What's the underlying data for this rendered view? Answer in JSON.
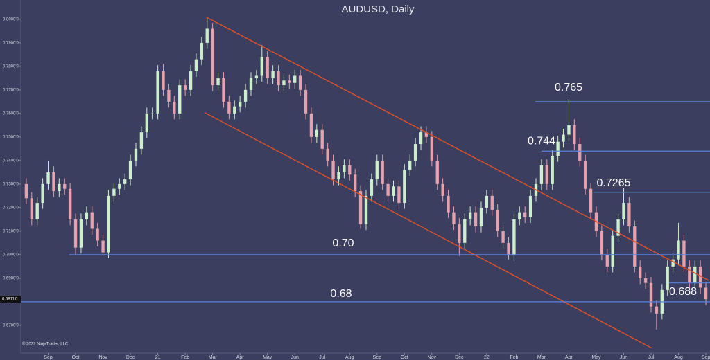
{
  "chart_data": {
    "type": "candlestick",
    "title": "AUDUSD, Daily",
    "copyright": "© 2022 NinjaTrader, LLC",
    "background": "#3b3e5e",
    "up_color": "#cdeecd",
    "down_color": "#e3a2ad",
    "level_color": "#5b82dc",
    "channel_color": "#d9502a",
    "xlim": [
      -1.0,
      24.1
    ],
    "ylim": [
      0.6582,
      0.8082
    ],
    "xticks": [
      {
        "value": 0,
        "label": "Sep"
      },
      {
        "value": 1,
        "label": "Oct"
      },
      {
        "value": 2,
        "label": "Nov"
      },
      {
        "value": 3,
        "label": "Dec"
      },
      {
        "value": 4,
        "label": "21"
      },
      {
        "value": 5,
        "label": "Feb"
      },
      {
        "value": 6,
        "label": "Mar"
      },
      {
        "value": 7,
        "label": "Apr"
      },
      {
        "value": 8,
        "label": "May"
      },
      {
        "value": 9,
        "label": "Jun"
      },
      {
        "value": 10,
        "label": "Jul"
      },
      {
        "value": 11,
        "label": "Aug"
      },
      {
        "value": 12,
        "label": "Sep"
      },
      {
        "value": 13,
        "label": "Oct"
      },
      {
        "value": 14,
        "label": "Nov"
      },
      {
        "value": 15,
        "label": "Dec"
      },
      {
        "value": 16,
        "label": "22"
      },
      {
        "value": 17,
        "label": "Feb"
      },
      {
        "value": 18,
        "label": "Mar"
      },
      {
        "value": 19,
        "label": "Apr"
      },
      {
        "value": 20,
        "label": "May"
      },
      {
        "value": 21,
        "label": "Jun"
      },
      {
        "value": 22,
        "label": "Jul"
      },
      {
        "value": 23,
        "label": "Aug"
      },
      {
        "value": 24,
        "label": "Sep"
      }
    ],
    "yticks": [
      {
        "value": 0.67,
        "label": "0.6700'0"
      },
      {
        "value": 0.68,
        "label": "0.6800'0"
      },
      {
        "value": 0.69,
        "label": "0.6900'0"
      },
      {
        "value": 0.7,
        "label": "0.7000'0"
      },
      {
        "value": 0.71,
        "label": "0.7100'0"
      },
      {
        "value": 0.72,
        "label": "0.7200'0"
      },
      {
        "value": 0.73,
        "label": "0.7300'0"
      },
      {
        "value": 0.74,
        "label": "0.7400'0"
      },
      {
        "value": 0.75,
        "label": "0.7500'0"
      },
      {
        "value": 0.76,
        "label": "0.7600'0"
      },
      {
        "value": 0.77,
        "label": "0.7700'0"
      },
      {
        "value": 0.78,
        "label": "0.7800'0"
      },
      {
        "value": 0.79,
        "label": "0.7900'0"
      },
      {
        "value": 0.8,
        "label": "0.8000'0"
      }
    ],
    "last_price": {
      "value": 0.6811,
      "label": "0.6811'0"
    },
    "levels": [
      {
        "value": 0.765,
        "label": "0.765",
        "x_start": 17.77
      },
      {
        "value": 0.744,
        "label": "0.744",
        "x_start": 18.0
      },
      {
        "value": 0.7265,
        "label": "0.7265",
        "x_start": 19.9
      },
      {
        "value": 0.7,
        "label": "0.70",
        "x_start": 0.77
      },
      {
        "value": 0.68,
        "label": "0.68",
        "x_start": -1.0
      },
      {
        "value": 0.688,
        "label": "0.688",
        "x_start": 22.66
      }
    ],
    "channels": [
      {
        "x": [
          5.77,
          24.1
        ],
        "y": [
          0.8009,
          0.6891
        ]
      },
      {
        "x": [
          5.72,
          22.03
        ],
        "y": [
          0.7603,
          0.6603
        ]
      }
    ],
    "x": [
      -0.8,
      -0.6,
      -0.4,
      -0.2,
      0,
      0.2,
      0.4,
      0.6,
      0.8,
      1,
      1.2,
      1.4,
      1.6,
      1.8,
      2,
      2.2,
      2.4,
      2.6,
      2.8,
      3,
      3.2,
      3.4,
      3.6,
      3.8,
      4,
      4.2,
      4.4,
      4.6,
      4.8,
      5,
      5.2,
      5.4,
      5.6,
      5.8,
      6,
      6.2,
      6.4,
      6.6,
      6.8,
      7,
      7.2,
      7.4,
      7.6,
      7.8,
      8,
      8.2,
      8.4,
      8.6,
      8.8,
      9,
      9.2,
      9.4,
      9.6,
      9.8,
      10,
      10.2,
      10.4,
      10.6,
      10.8,
      11,
      11.2,
      11.4,
      11.6,
      11.8,
      12,
      12.2,
      12.4,
      12.6,
      12.8,
      13,
      13.2,
      13.4,
      13.6,
      13.8,
      14,
      14.2,
      14.4,
      14.6,
      14.8,
      15,
      15.2,
      15.4,
      15.6,
      15.8,
      16,
      16.2,
      16.4,
      16.6,
      16.8,
      17,
      17.2,
      17.4,
      17.6,
      17.8,
      18,
      18.2,
      18.4,
      18.6,
      18.8,
      19,
      19.2,
      19.4,
      19.6,
      19.8,
      20,
      20.2,
      20.4,
      20.6,
      20.8,
      21,
      21.2,
      21.4,
      21.6,
      21.8,
      22,
      22.2,
      22.4,
      22.6,
      22.8,
      23,
      23.2,
      23.4,
      23.6,
      23.8,
      24
    ],
    "open": [
      0.73,
      0.724,
      0.715,
      0.722,
      0.73,
      0.735,
      0.727,
      0.73,
      0.728,
      0.715,
      0.703,
      0.715,
      0.718,
      0.711,
      0.706,
      0.701,
      0.725,
      0.728,
      0.73,
      0.732,
      0.74,
      0.745,
      0.752,
      0.76,
      0.76,
      0.778,
      0.77,
      0.765,
      0.76,
      0.772,
      0.77,
      0.778,
      0.783,
      0.79,
      0.796,
      0.772,
      0.775,
      0.765,
      0.76,
      0.763,
      0.765,
      0.77,
      0.775,
      0.776,
      0.784,
      0.775,
      0.778,
      0.772,
      0.774,
      0.773,
      0.776,
      0.77,
      0.76,
      0.75,
      0.753,
      0.745,
      0.74,
      0.732,
      0.735,
      0.738,
      0.734,
      0.727,
      0.713,
      0.725,
      0.732,
      0.74,
      0.73,
      0.725,
      0.729,
      0.722,
      0.736,
      0.74,
      0.747,
      0.752,
      0.75,
      0.74,
      0.73,
      0.725,
      0.718,
      0.713,
      0.705,
      0.715,
      0.718,
      0.712,
      0.72,
      0.725,
      0.719,
      0.71,
      0.705,
      0.7,
      0.715,
      0.718,
      0.716,
      0.725,
      0.73,
      0.738,
      0.73,
      0.742,
      0.748,
      0.751,
      0.755,
      0.747,
      0.74,
      0.728,
      0.718,
      0.71,
      0.7,
      0.695,
      0.708,
      0.715,
      0.722,
      0.712,
      0.695,
      0.69,
      0.688,
      0.678,
      0.675,
      0.685,
      0.695,
      0.698,
      0.706,
      0.695,
      0.688,
      0.695,
      0.686
    ],
    "high": [
      0.7325,
      0.7265,
      0.7245,
      0.7325,
      0.74,
      0.7375,
      0.7325,
      0.7325,
      0.7305,
      0.7175,
      0.7175,
      0.7205,
      0.7205,
      0.7135,
      0.7085,
      0.7275,
      0.7305,
      0.7325,
      0.7345,
      0.7425,
      0.7475,
      0.7545,
      0.7625,
      0.7625,
      0.7805,
      0.781,
      0.7725,
      0.7675,
      0.7745,
      0.7745,
      0.7805,
      0.7855,
      0.7925,
      0.801,
      0.7985,
      0.7775,
      0.7775,
      0.7675,
      0.7655,
      0.7675,
      0.7725,
      0.7775,
      0.7785,
      0.789,
      0.7865,
      0.7805,
      0.7805,
      0.7765,
      0.7765,
      0.7785,
      0.7785,
      0.7725,
      0.7625,
      0.7555,
      0.7555,
      0.7475,
      0.7425,
      0.7375,
      0.7405,
      0.7405,
      0.7365,
      0.7295,
      0.7275,
      0.7345,
      0.7425,
      0.7425,
      0.7325,
      0.7315,
      0.7315,
      0.7385,
      0.7425,
      0.7495,
      0.7545,
      0.7545,
      0.7525,
      0.7425,
      0.7325,
      0.7275,
      0.7205,
      0.7155,
      0.7175,
      0.7205,
      0.7205,
      0.7225,
      0.7275,
      0.7275,
      0.7215,
      0.7125,
      0.7075,
      0.7175,
      0.7205,
      0.7205,
      0.7275,
      0.7325,
      0.7405,
      0.7405,
      0.7445,
      0.7505,
      0.7535,
      0.7661,
      0.7575,
      0.7495,
      0.7425,
      0.7305,
      0.7205,
      0.7125,
      0.7025,
      0.7105,
      0.7175,
      0.7283,
      0.7245,
      0.7145,
      0.6975,
      0.6925,
      0.6905,
      0.6805,
      0.6875,
      0.6975,
      0.7005,
      0.7135,
      0.7085,
      0.6975,
      0.6975,
      0.6975,
      0.6885
    ],
    "low": [
      0.7215,
      0.7125,
      0.7125,
      0.7195,
      0.7275,
      0.7245,
      0.7245,
      0.7255,
      0.7125,
      0.7,
      0.7005,
      0.7125,
      0.7085,
      0.7035,
      0.6995,
      0.6985,
      0.7225,
      0.7255,
      0.7275,
      0.7295,
      0.7375,
      0.7425,
      0.7495,
      0.7575,
      0.7575,
      0.7675,
      0.7625,
      0.7575,
      0.7575,
      0.7675,
      0.7675,
      0.7755,
      0.7805,
      0.7875,
      0.7695,
      0.7695,
      0.7625,
      0.7575,
      0.7575,
      0.7605,
      0.7625,
      0.7675,
      0.7725,
      0.7735,
      0.7725,
      0.7725,
      0.7695,
      0.7695,
      0.7705,
      0.7705,
      0.7675,
      0.7575,
      0.7475,
      0.7475,
      0.7425,
      0.7375,
      0.7295,
      0.7295,
      0.7325,
      0.7315,
      0.7245,
      0.711,
      0.7105,
      0.7225,
      0.7295,
      0.7275,
      0.7225,
      0.7225,
      0.7195,
      0.7195,
      0.7335,
      0.7375,
      0.7445,
      0.7475,
      0.7375,
      0.7275,
      0.7225,
      0.7155,
      0.7105,
      0.6995,
      0.7025,
      0.7125,
      0.7095,
      0.7095,
      0.7175,
      0.7165,
      0.7075,
      0.7025,
      0.698,
      0.6975,
      0.7125,
      0.7135,
      0.7135,
      0.7225,
      0.7275,
      0.7275,
      0.7275,
      0.7395,
      0.7455,
      0.7485,
      0.7445,
      0.7375,
      0.7255,
      0.7155,
      0.7075,
      0.6975,
      0.6925,
      0.6925,
      0.7055,
      0.7125,
      0.7095,
      0.6925,
      0.6875,
      0.6855,
      0.6755,
      0.6682,
      0.6725,
      0.6825,
      0.6925,
      0.6955,
      0.6925,
      0.6855,
      0.6855,
      0.6835,
      0.6785
    ],
    "close": [
      0.724,
      0.715,
      0.722,
      0.73,
      0.735,
      0.727,
      0.73,
      0.728,
      0.715,
      0.703,
      0.715,
      0.718,
      0.711,
      0.706,
      0.701,
      0.725,
      0.728,
      0.73,
      0.732,
      0.74,
      0.745,
      0.752,
      0.76,
      0.76,
      0.778,
      0.77,
      0.765,
      0.76,
      0.772,
      0.77,
      0.778,
      0.783,
      0.79,
      0.796,
      0.772,
      0.775,
      0.765,
      0.76,
      0.763,
      0.765,
      0.77,
      0.775,
      0.776,
      0.784,
      0.775,
      0.778,
      0.772,
      0.774,
      0.773,
      0.776,
      0.77,
      0.76,
      0.75,
      0.753,
      0.745,
      0.74,
      0.732,
      0.735,
      0.738,
      0.734,
      0.727,
      0.713,
      0.725,
      0.732,
      0.74,
      0.73,
      0.725,
      0.729,
      0.722,
      0.736,
      0.74,
      0.747,
      0.752,
      0.75,
      0.74,
      0.73,
      0.725,
      0.718,
      0.713,
      0.705,
      0.715,
      0.718,
      0.712,
      0.72,
      0.725,
      0.719,
      0.71,
      0.705,
      0.7,
      0.715,
      0.718,
      0.716,
      0.725,
      0.73,
      0.738,
      0.73,
      0.742,
      0.748,
      0.751,
      0.755,
      0.747,
      0.74,
      0.728,
      0.718,
      0.71,
      0.7,
      0.695,
      0.708,
      0.715,
      0.722,
      0.712,
      0.695,
      0.69,
      0.688,
      0.678,
      0.675,
      0.685,
      0.695,
      0.698,
      0.706,
      0.695,
      0.688,
      0.695,
      0.686,
      0.6811
    ]
  }
}
